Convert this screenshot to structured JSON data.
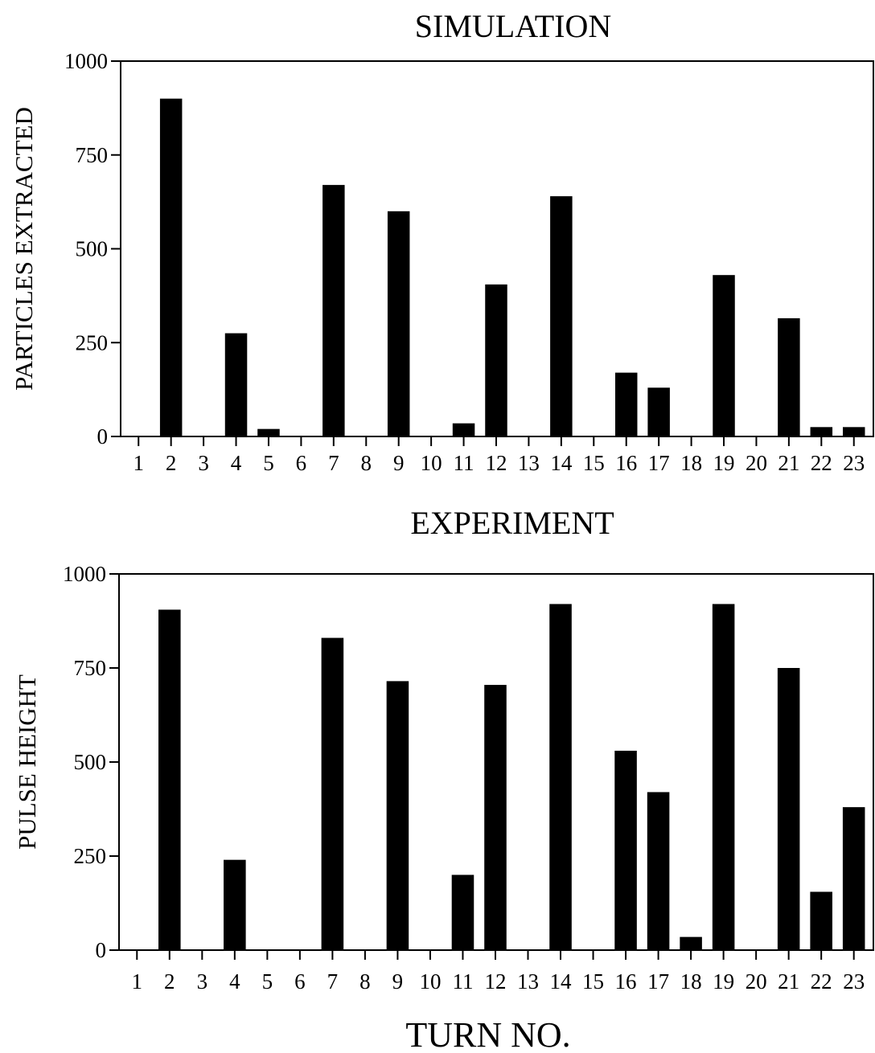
{
  "figure": {
    "xlabel": "TURN NO."
  },
  "chart_data": [
    {
      "type": "bar",
      "title": "SIMULATION",
      "xlabel": "",
      "ylabel": "PARTICLES EXTRACTED",
      "ylim": [
        0,
        1000
      ],
      "yticks": [
        0,
        250,
        500,
        750,
        1000
      ],
      "categories": [
        "1",
        "2",
        "3",
        "4",
        "5",
        "6",
        "7",
        "8",
        "9",
        "10",
        "11",
        "12",
        "13",
        "14",
        "15",
        "16",
        "17",
        "18",
        "19",
        "20",
        "21",
        "22",
        "23"
      ],
      "values": [
        0,
        900,
        0,
        275,
        20,
        0,
        670,
        0,
        600,
        0,
        35,
        405,
        0,
        640,
        0,
        170,
        130,
        0,
        430,
        0,
        315,
        25,
        25
      ],
      "grid": false,
      "legend": "none"
    },
    {
      "type": "bar",
      "title": "EXPERIMENT",
      "xlabel": "TURN NO.",
      "ylabel": "PULSE HEIGHT",
      "ylim": [
        0,
        1000
      ],
      "yticks": [
        0,
        250,
        500,
        750,
        1000
      ],
      "categories": [
        "1",
        "2",
        "3",
        "4",
        "5",
        "6",
        "7",
        "8",
        "9",
        "10",
        "11",
        "12",
        "13",
        "14",
        "15",
        "16",
        "17",
        "18",
        "19",
        "20",
        "21",
        "22",
        "23"
      ],
      "values": [
        0,
        905,
        0,
        240,
        0,
        0,
        830,
        0,
        715,
        0,
        200,
        705,
        0,
        920,
        0,
        530,
        420,
        35,
        920,
        0,
        750,
        155,
        380
      ],
      "grid": false,
      "legend": "none"
    }
  ]
}
